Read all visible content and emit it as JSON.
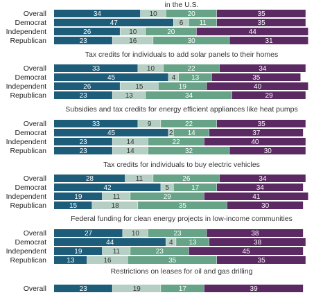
{
  "chart_data": {
    "type": "bar",
    "orientation": "horizontal",
    "stacked": true,
    "colors": [
      "#1e5d7a",
      "#b6cfc4",
      "#66a387",
      "#5b2a62"
    ],
    "label_colors": [
      "#ffffff",
      "#333333",
      "#ffffff",
      "#ffffff"
    ],
    "groups": [
      {
        "title": "in the U.S.",
        "rows": [
          {
            "label": "Overall",
            "values": [
              34,
              10,
              20,
              35
            ]
          },
          {
            "label": "Democrat",
            "values": [
              47,
              6,
              11,
              35
            ]
          },
          {
            "label": "Independent",
            "values": [
              26,
              10,
              20,
              44
            ]
          },
          {
            "label": "Republican",
            "values": [
              23,
              16,
              30,
              31
            ]
          }
        ]
      },
      {
        "title": "Tax credits for individuals to add solar panels to their homes",
        "rows": [
          {
            "label": "Overall",
            "values": [
              33,
              10,
              22,
              34
            ]
          },
          {
            "label": "Democrat",
            "values": [
              45,
              4,
              13,
              35
            ]
          },
          {
            "label": "Independent",
            "values": [
              26,
              15,
              19,
              40
            ]
          },
          {
            "label": "Republican",
            "values": [
              23,
              13,
              34,
              29
            ]
          }
        ]
      },
      {
        "title": "Subsidies and tax credits for energy efficient appliances like heat pumps",
        "rows": [
          {
            "label": "Overall",
            "values": [
              33,
              9,
              22,
              35
            ]
          },
          {
            "label": "Democrat",
            "values": [
              45,
              2,
              14,
              37
            ]
          },
          {
            "label": "Independent",
            "values": [
              23,
              14,
              22,
              40
            ]
          },
          {
            "label": "Republican",
            "values": [
              23,
              14,
              32,
              30
            ]
          }
        ]
      },
      {
        "title": "Tax credits for individuals to buy electric vehicles",
        "rows": [
          {
            "label": "Overall",
            "values": [
              28,
              11,
              26,
              34
            ]
          },
          {
            "label": "Democrat",
            "values": [
              42,
              5,
              17,
              34
            ]
          },
          {
            "label": "Independent",
            "values": [
              19,
              11,
              29,
              41
            ]
          },
          {
            "label": "Republican",
            "values": [
              15,
              18,
              35,
              30
            ]
          }
        ]
      },
      {
        "title": "Federal funding for clean energy projects in low-income communities",
        "rows": [
          {
            "label": "Overall",
            "values": [
              27,
              10,
              23,
              38
            ]
          },
          {
            "label": "Democrat",
            "values": [
              44,
              4,
              13,
              38
            ]
          },
          {
            "label": "Independent",
            "values": [
              19,
              11,
              23,
              45
            ]
          },
          {
            "label": "Republican",
            "values": [
              13,
              16,
              35,
              35
            ]
          }
        ]
      },
      {
        "title": "Restrictions on leases for oil and gas drilling",
        "rows": [
          {
            "label": "Overall",
            "values": [
              23,
              19,
              17,
              39
            ]
          }
        ]
      }
    ]
  }
}
